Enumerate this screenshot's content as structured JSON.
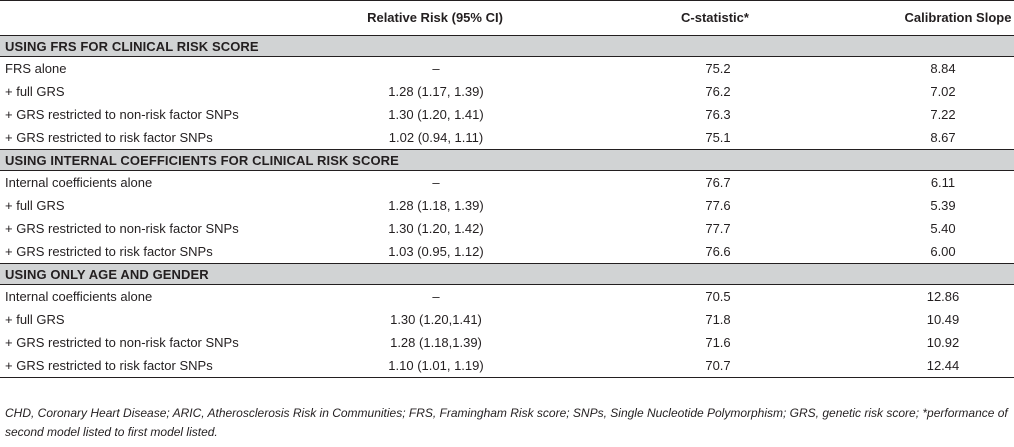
{
  "table": {
    "headers": {
      "label": "",
      "relative_risk": "Relative Risk (95% CI)",
      "c_statistic": "C-statistic*",
      "calibration_slope": "Calibration Slope"
    },
    "sections": [
      {
        "title": "USING FRS FOR CLINICAL RISK SCORE",
        "rows": [
          {
            "label": "FRS alone",
            "rr": "–",
            "cs": "75.2",
            "cal": "8.84"
          },
          {
            "label": "+ full GRS",
            "rr": "1.28 (1.17, 1.39)",
            "cs": "76.2",
            "cal": "7.02"
          },
          {
            "label": "+ GRS restricted to non-risk factor SNPs",
            "rr": "1.30 (1.20, 1.41)",
            "cs": "76.3",
            "cal": "7.22"
          },
          {
            "label": "+ GRS restricted to risk factor SNPs",
            "rr": "1.02 (0.94, 1.11)",
            "cs": "75.1",
            "cal": "8.67"
          }
        ]
      },
      {
        "title": "USING INTERNAL COEFFICIENTS FOR CLINICAL RISK SCORE",
        "rows": [
          {
            "label": "Internal coefficients alone",
            "rr": "–",
            "cs": "76.7",
            "cal": "6.11"
          },
          {
            "label": "+ full GRS",
            "rr": "1.28 (1.18, 1.39)",
            "cs": "77.6",
            "cal": "5.39"
          },
          {
            "label": "+ GRS restricted to non-risk factor SNPs",
            "rr": "1.30 (1.20, 1.42)",
            "cs": "77.7",
            "cal": "5.40"
          },
          {
            "label": "+ GRS restricted to risk factor SNPs",
            "rr": "1.03 (0.95, 1.12)",
            "cs": "76.6",
            "cal": "6.00"
          }
        ]
      },
      {
        "title": "USING ONLY AGE AND GENDER",
        "rows": [
          {
            "label": "Internal coefficients alone",
            "rr": "–",
            "cs": "70.5",
            "cal": "12.86"
          },
          {
            "label": "+ full GRS",
            "rr": "1.30 (1.20,1.41)",
            "cs": "71.8",
            "cal": "10.49"
          },
          {
            "label": "+ GRS restricted to non-risk factor SNPs",
            "rr": "1.28 (1.18,1.39)",
            "cs": "71.6",
            "cal": "10.92"
          },
          {
            "label": "+ GRS restricted to risk factor SNPs",
            "rr": "1.10 (1.01, 1.19)",
            "cs": "70.7",
            "cal": "12.44"
          }
        ]
      }
    ]
  },
  "footnote": "CHD, Coronary Heart Disease; ARIC, Atherosclerosis Risk in Communities; FRS, Framingham Risk score; SNPs, Single Nucleotide Polymorphism; GRS, genetic risk score; *performance of second model listed to first model listed."
}
